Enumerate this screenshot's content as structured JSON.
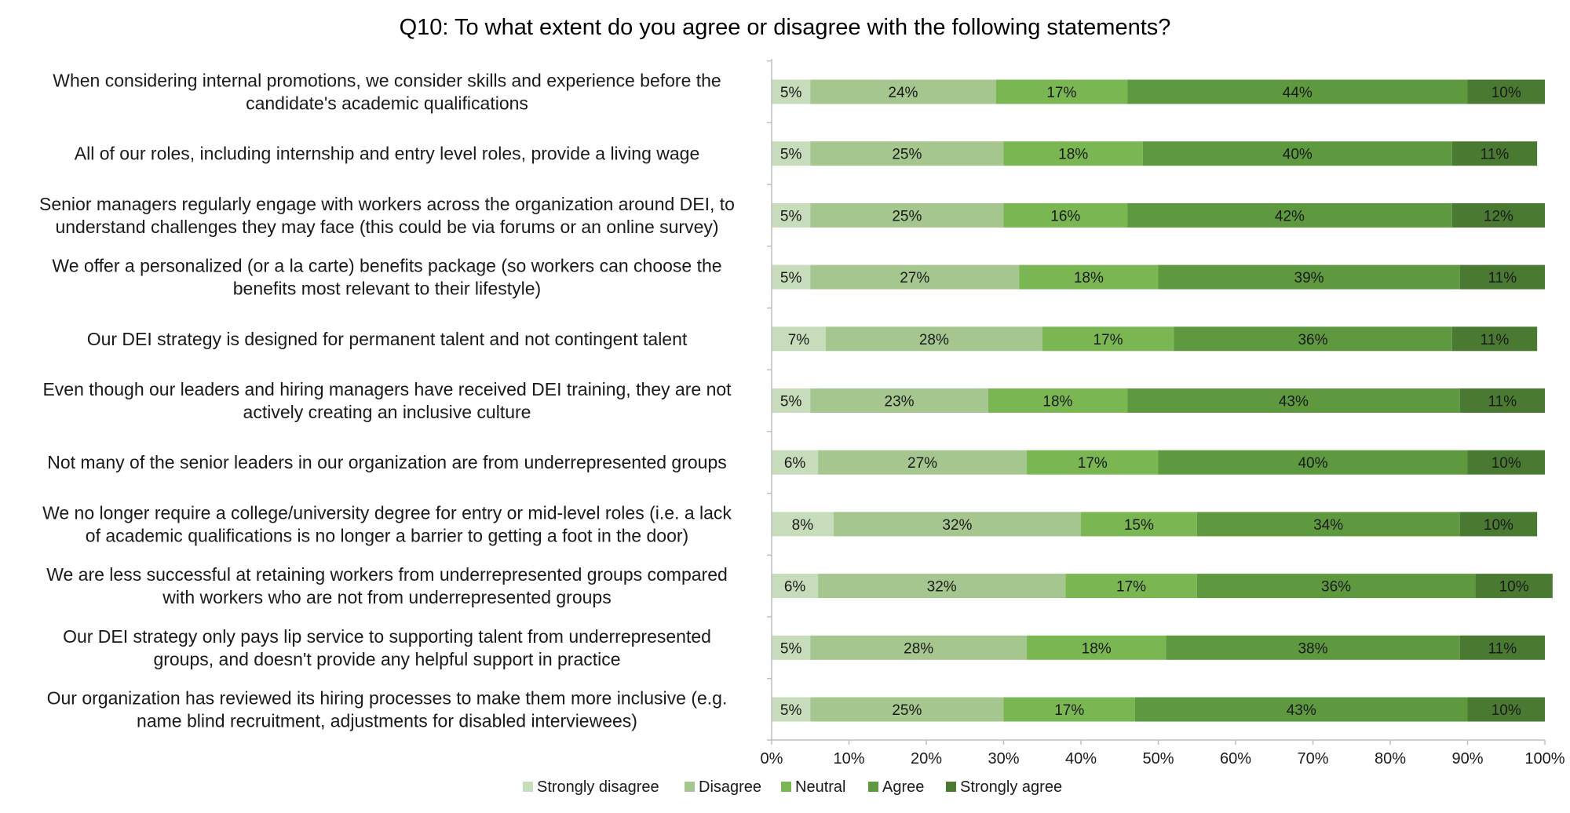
{
  "chart_data": {
    "type": "bar",
    "orientation": "horizontal",
    "stacked": true,
    "title": "Q10: To what extent do you agree or disagree with the following statements?",
    "categories": [
      [
        "When considering internal promotions, we consider skills and experience before the",
        "candidate's academic qualifications"
      ],
      [
        "All of our roles, including internship and entry level roles, provide a living wage"
      ],
      [
        "Senior managers regularly engage with workers across the organization around DEI, to",
        "understand challenges they may face (this could be via forums or an online survey)"
      ],
      [
        "We offer a personalized (or a la carte) benefits package (so workers can choose the",
        "benefits most relevant to their lifestyle)"
      ],
      [
        "Our DEI strategy is designed for permanent talent and not contingent talent"
      ],
      [
        "Even though our leaders and hiring managers have received DEI training, they are not",
        "actively creating an inclusive culture"
      ],
      [
        "Not many of the senior leaders in our organization are from underrepresented groups"
      ],
      [
        "We no longer require a college/university degree for entry or mid-level roles (i.e. a lack",
        "of academic qualifications is no longer a barrier to getting a foot in the door)"
      ],
      [
        "We are less successful at retaining workers from underrepresented groups compared",
        "with workers who are not from underrepresented groups"
      ],
      [
        "Our DEI strategy only pays lip service to supporting talent from underrepresented",
        "groups, and doesn't provide any helpful support in practice"
      ],
      [
        "Our organization has reviewed its hiring processes to make them more inclusive (e.g.",
        "name blind recruitment, adjustments for disabled interviewees)"
      ]
    ],
    "series": [
      {
        "name": "Strongly disagree",
        "color": "#c7dcbb",
        "values": [
          5,
          5,
          5,
          5,
          7,
          5,
          6,
          8,
          6,
          5,
          5
        ]
      },
      {
        "name": "Disagree",
        "color": "#a5c78f",
        "values": [
          24,
          25,
          25,
          27,
          28,
          23,
          27,
          32,
          32,
          28,
          25
        ]
      },
      {
        "name": "Neutral",
        "color": "#7ab753",
        "values": [
          17,
          18,
          16,
          18,
          17,
          18,
          17,
          15,
          17,
          18,
          17
        ]
      },
      {
        "name": "Agree",
        "color": "#5e9940",
        "values": [
          44,
          40,
          42,
          39,
          36,
          43,
          40,
          34,
          36,
          38,
          43
        ]
      },
      {
        "name": "Strongly agree",
        "color": "#4a7a32",
        "values": [
          10,
          11,
          12,
          11,
          11,
          11,
          10,
          10,
          10,
          11,
          10
        ]
      }
    ],
    "value_suffix": "%",
    "xlim": [
      0,
      100
    ],
    "xticks": [
      "0%",
      "10%",
      "20%",
      "30%",
      "40%",
      "50%",
      "60%",
      "70%",
      "80%",
      "90%",
      "100%"
    ],
    "xlabel": "",
    "ylabel": "",
    "grid": false,
    "legend_position": "bottom"
  }
}
